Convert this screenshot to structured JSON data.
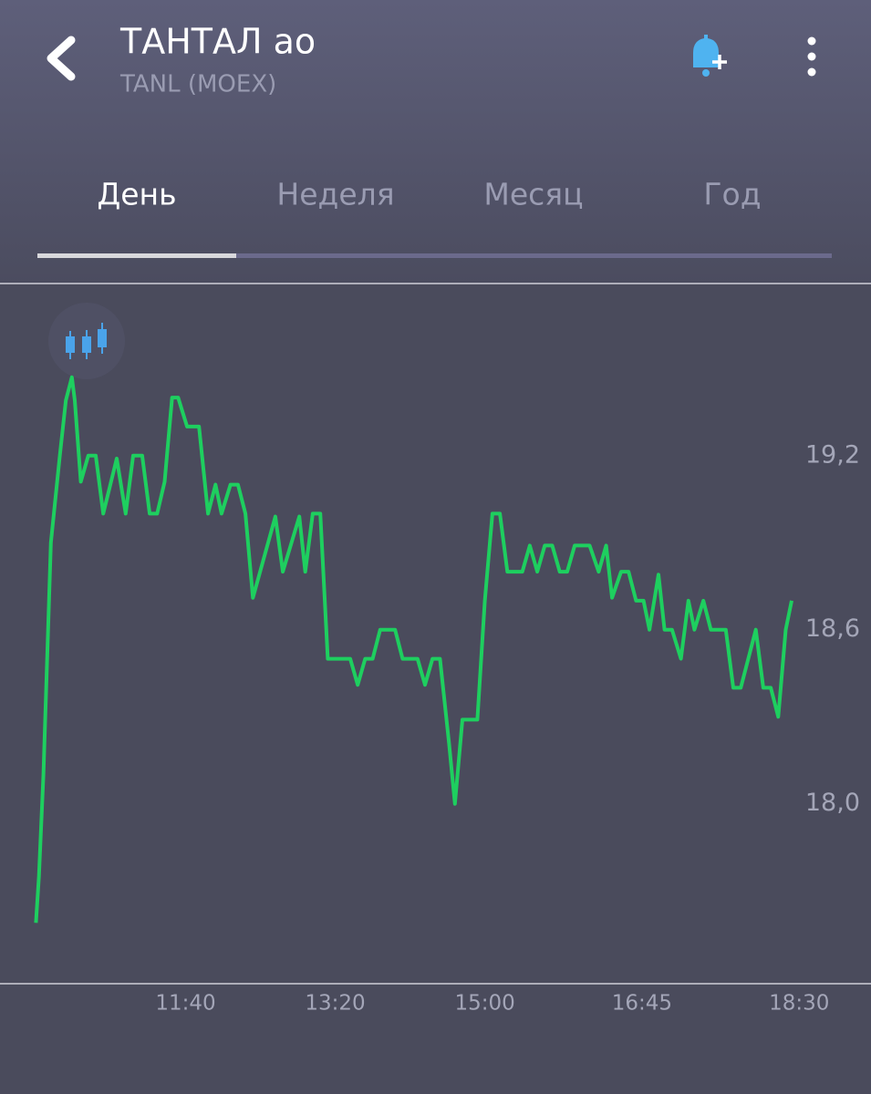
{
  "header": {
    "title": "ТАНТАЛ ао",
    "subtitle": "TANL (MOEX)"
  },
  "tabs": [
    "День",
    "Неделя",
    "Месяц",
    "Год"
  ],
  "chart_data": {
    "type": "line",
    "color": "#1ecf5f",
    "x": [
      600,
      602,
      605,
      610,
      616,
      620,
      624,
      626,
      630,
      635,
      640,
      645,
      654,
      660,
      665,
      671,
      676,
      681,
      686,
      691,
      695,
      701,
      709,
      715,
      720,
      724,
      730,
      735,
      740,
      745,
      760,
      765,
      776,
      780,
      785,
      790,
      795,
      810,
      815,
      820,
      825,
      830,
      840,
      845,
      855,
      860,
      865,
      870,
      876,
      880,
      885,
      895,
      900,
      905,
      910,
      915,
      925,
      930,
      935,
      940,
      945,
      950,
      955,
      960,
      970,
      976,
      981,
      985,
      991,
      996,
      1001,
      1006,
      1010,
      1016,
      1020,
      1025,
      1031,
      1036,
      1040,
      1046,
      1051,
      1061,
      1066,
      1071,
      1081,
      1086,
      1091,
      1096,
      1101,
      1105
    ],
    "values": [
      17.59,
      17.75,
      18.1,
      18.9,
      19.2,
      19.39,
      19.47,
      19.39,
      19.11,
      19.2,
      19.2,
      19.0,
      19.19,
      19.0,
      19.2,
      19.2,
      19.0,
      19.0,
      19.11,
      19.4,
      19.4,
      19.3,
      19.3,
      19.0,
      19.1,
      19.0,
      19.1,
      19.1,
      19.0,
      18.71,
      18.99,
      18.8,
      18.99,
      18.8,
      19.0,
      19.0,
      18.5,
      18.5,
      18.41,
      18.5,
      18.5,
      18.6,
      18.6,
      18.5,
      18.5,
      18.41,
      18.5,
      18.5,
      18.21,
      18.0,
      18.29,
      18.29,
      18.7,
      19.0,
      19.0,
      18.8,
      18.8,
      18.89,
      18.8,
      18.89,
      18.89,
      18.8,
      18.8,
      18.89,
      18.89,
      18.8,
      18.89,
      18.71,
      18.8,
      18.8,
      18.7,
      18.7,
      18.6,
      18.79,
      18.6,
      18.6,
      18.5,
      18.7,
      18.6,
      18.7,
      18.6,
      18.6,
      18.4,
      18.4,
      18.6,
      18.4,
      18.4,
      18.3,
      18.6,
      18.7
    ],
    "xlim": [
      576,
      1158
    ],
    "xticks": [
      {
        "value": 700,
        "label": "11:40"
      },
      {
        "value": 800,
        "label": "13:20"
      },
      {
        "value": 900,
        "label": "15:00"
      },
      {
        "value": 1005,
        "label": "16:45"
      },
      {
        "value": 1110,
        "label": "18:30"
      }
    ],
    "ylim": [
      17.38,
      19.79
    ],
    "yticks": [
      {
        "value": 18.0,
        "label": "18,0"
      },
      {
        "value": 18.6,
        "label": "18,6"
      },
      {
        "value": 19.2,
        "label": "19,2"
      }
    ],
    "grid": false
  }
}
